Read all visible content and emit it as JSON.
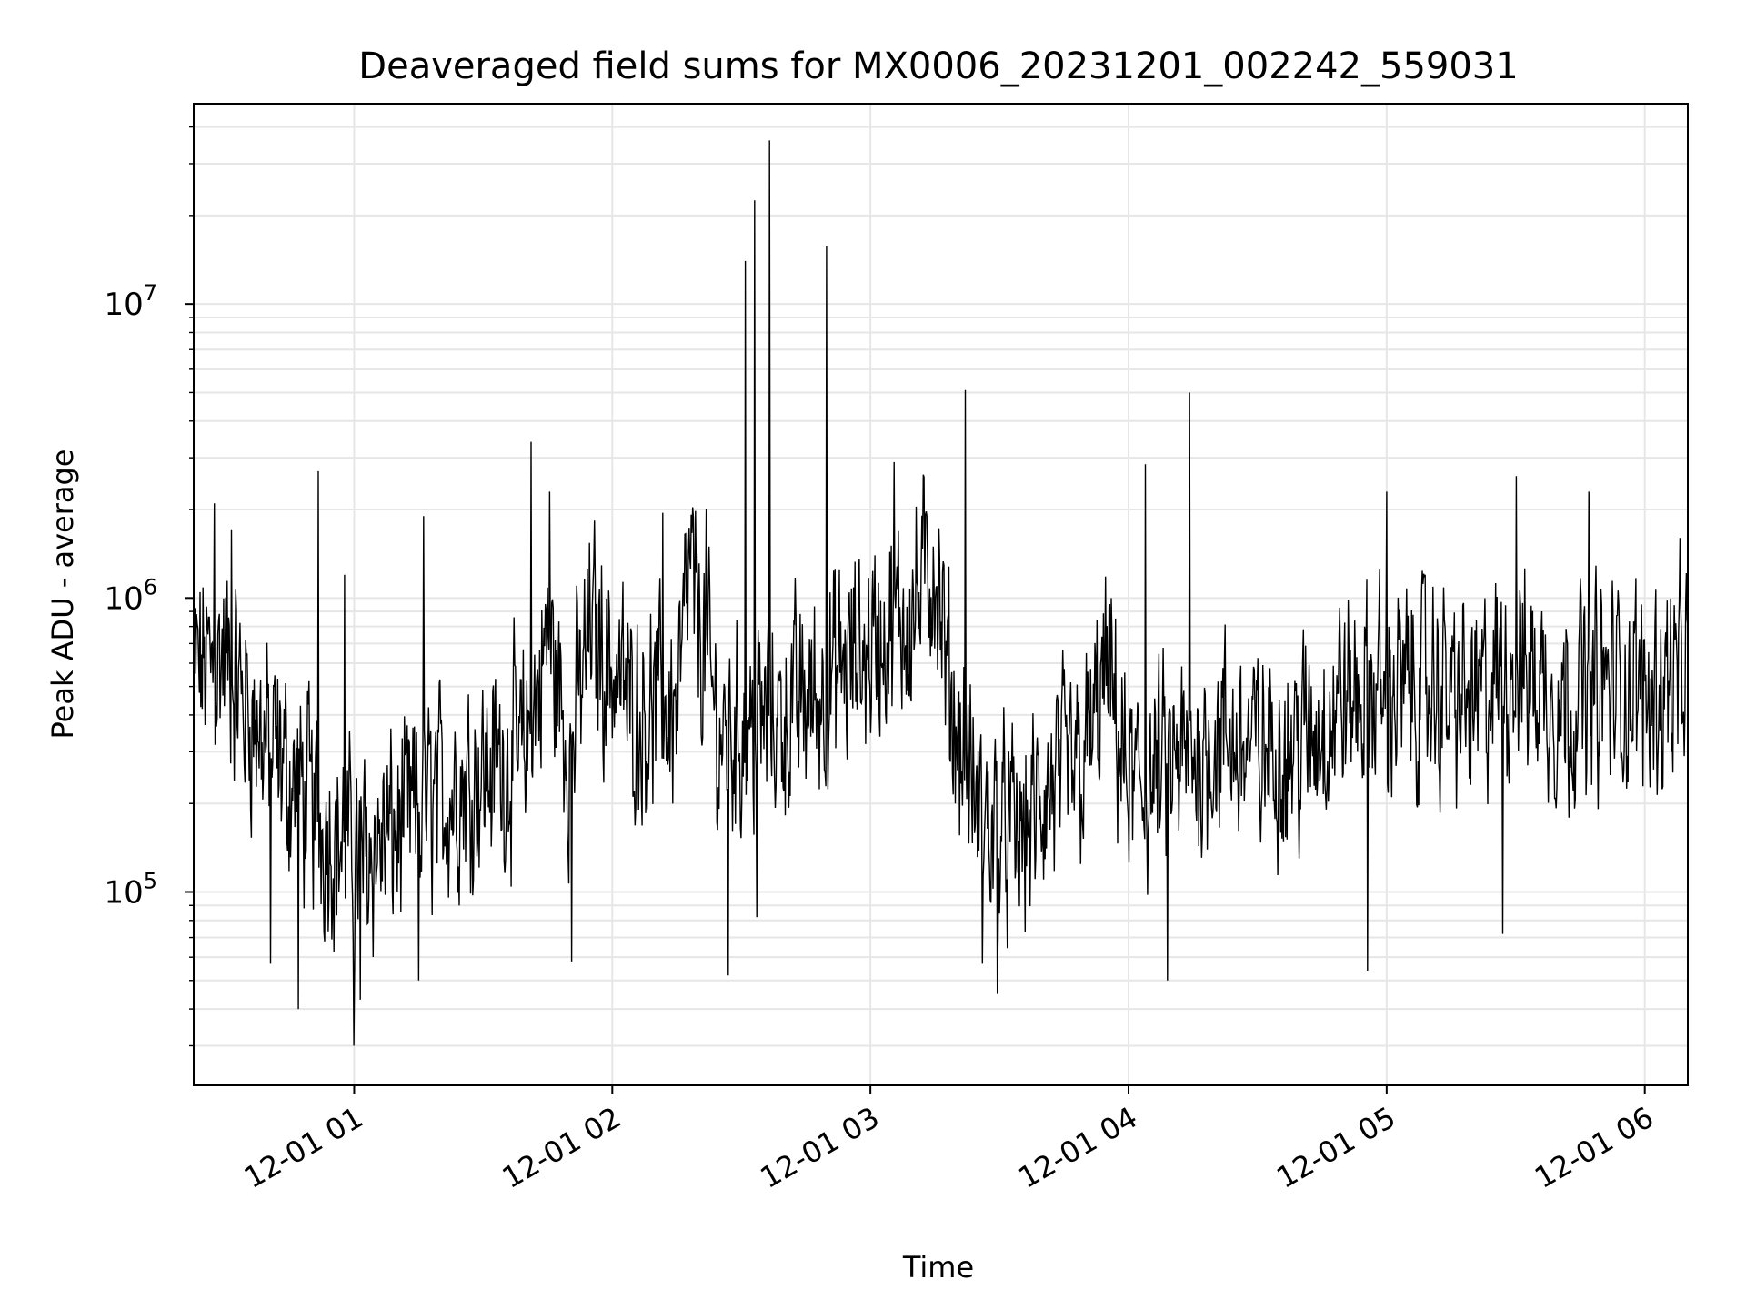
{
  "chart_data": {
    "type": "line",
    "title": "Deaveraged field sums for MX0006_20231201_002242_559031",
    "xlabel": "Time",
    "ylabel": "Peak ADU - average",
    "x_range": [
      "2023-12-01 00:22:42",
      "2023-12-01 06:10:00"
    ],
    "yscale": "log",
    "ylim": [
      22000,
      48000000
    ],
    "grid": true,
    "line_color": "#000000",
    "grid_color": "#e6e6e6",
    "x_ticks": [
      {
        "value": "2023-12-01 01:00",
        "label": "12-01 01"
      },
      {
        "value": "2023-12-01 02:00",
        "label": "12-01 02"
      },
      {
        "value": "2023-12-01 03:00",
        "label": "12-01 03"
      },
      {
        "value": "2023-12-01 04:00",
        "label": "12-01 04"
      },
      {
        "value": "2023-12-01 05:00",
        "label": "12-01 05"
      },
      {
        "value": "2023-12-01 06:00",
        "label": "12-01 06"
      }
    ],
    "y_ticks": [
      {
        "value": 100000,
        "base": "10",
        "exp": "5"
      },
      {
        "value": 1000000,
        "base": "10",
        "exp": "6"
      },
      {
        "value": 10000000,
        "base": "10",
        "exp": "7"
      }
    ],
    "series": [
      {
        "baseline": [
          [
            "2023-12-01 00:22:42",
            560000
          ],
          [
            "2023-12-01 00:30",
            620000
          ],
          [
            "2023-12-01 00:38",
            350000
          ],
          [
            "2023-12-01 00:48",
            210000
          ],
          [
            "2023-12-01 01:00",
            130000
          ],
          [
            "2023-12-01 01:10",
            160000
          ],
          [
            "2023-12-01 01:20",
            210000
          ],
          [
            "2023-12-01 01:30",
            260000
          ],
          [
            "2023-12-01 01:40",
            290000
          ],
          [
            "2023-12-01 01:45",
            750000
          ],
          [
            "2023-12-01 01:50",
            300000
          ],
          [
            "2023-12-01 01:55",
            800000
          ],
          [
            "2023-12-01 02:05",
            420000
          ],
          [
            "2023-12-01 02:15",
            420000
          ],
          [
            "2023-12-01 02:18",
            1200000
          ],
          [
            "2023-12-01 02:25",
            330000
          ],
          [
            "2023-12-01 02:40",
            400000
          ],
          [
            "2023-12-01 02:50",
            500000
          ],
          [
            "2023-12-01 03:00",
            700000
          ],
          [
            "2023-12-01 03:10",
            900000
          ],
          [
            "2023-12-01 03:15",
            1400000
          ],
          [
            "2023-12-01 03:18",
            500000
          ],
          [
            "2023-12-01 03:25",
            180000
          ],
          [
            "2023-12-01 03:35",
            150000
          ],
          [
            "2023-12-01 03:40",
            200000
          ],
          [
            "2023-12-01 03:50",
            280000
          ],
          [
            "2023-12-01 03:55",
            550000
          ],
          [
            "2023-12-01 04:00",
            220000
          ],
          [
            "2023-12-01 04:10",
            250000
          ],
          [
            "2023-12-01 04:20",
            330000
          ],
          [
            "2023-12-01 04:30",
            300000
          ],
          [
            "2023-12-01 04:40",
            320000
          ],
          [
            "2023-12-01 04:50",
            450000
          ],
          [
            "2023-12-01 05:00",
            480000
          ],
          [
            "2023-12-01 05:10",
            500000
          ],
          [
            "2023-12-01 05:20",
            420000
          ],
          [
            "2023-12-01 05:30",
            600000
          ],
          [
            "2023-12-01 05:40",
            450000
          ],
          [
            "2023-12-01 05:50",
            500000
          ],
          [
            "2023-12-01 06:00",
            480000
          ],
          [
            "2023-12-01 06:10",
            550000
          ]
        ],
        "spikes": [
          [
            "2023-12-01 00:27:30",
            2100000
          ],
          [
            "2023-12-01 00:31:30",
            1700000
          ],
          [
            "2023-12-01 00:51:40",
            2700000
          ],
          [
            "2023-12-01 00:57:50",
            1200000
          ],
          [
            "2023-12-01 01:16:10",
            1900000
          ],
          [
            "2023-12-01 01:41:10",
            3400000
          ],
          [
            "2023-12-01 01:45:30",
            2300000
          ],
          [
            "2023-12-01 02:11:40",
            1950000
          ],
          [
            "2023-12-01 02:21:50",
            2000000
          ],
          [
            "2023-12-01 02:31:00",
            14000000
          ],
          [
            "2023-12-01 02:33:00",
            22500000
          ],
          [
            "2023-12-01 02:36:30",
            36000000
          ],
          [
            "2023-12-01 02:49:50",
            15800000
          ],
          [
            "2023-12-01 03:05:30",
            2900000
          ],
          [
            "2023-12-01 03:22:00",
            5100000
          ],
          [
            "2023-12-01 04:04:00",
            2850000
          ],
          [
            "2023-12-01 04:14:10",
            5000000
          ],
          [
            "2023-12-01 05:00:00",
            2300000
          ],
          [
            "2023-12-01 05:30:10",
            2600000
          ],
          [
            "2023-12-01 05:47:00",
            2300000
          ]
        ],
        "dips": [
          [
            "2023-12-01 00:40:30",
            57000
          ],
          [
            "2023-12-01 00:47:00",
            40000
          ],
          [
            "2023-12-01 01:00:00",
            30000
          ],
          [
            "2023-12-01 01:01:30",
            43000
          ],
          [
            "2023-12-01 01:15:00",
            50000
          ],
          [
            "2023-12-01 01:50:30",
            58000
          ],
          [
            "2023-12-01 02:27:00",
            52000
          ],
          [
            "2023-12-01 02:33:30",
            82000
          ],
          [
            "2023-12-01 03:26:00",
            57000
          ],
          [
            "2023-12-01 03:29:30",
            45000
          ],
          [
            "2023-12-01 04:09:00",
            50000
          ],
          [
            "2023-12-01 04:55:30",
            54000
          ],
          [
            "2023-12-01 05:27:00",
            72000
          ]
        ]
      }
    ]
  }
}
